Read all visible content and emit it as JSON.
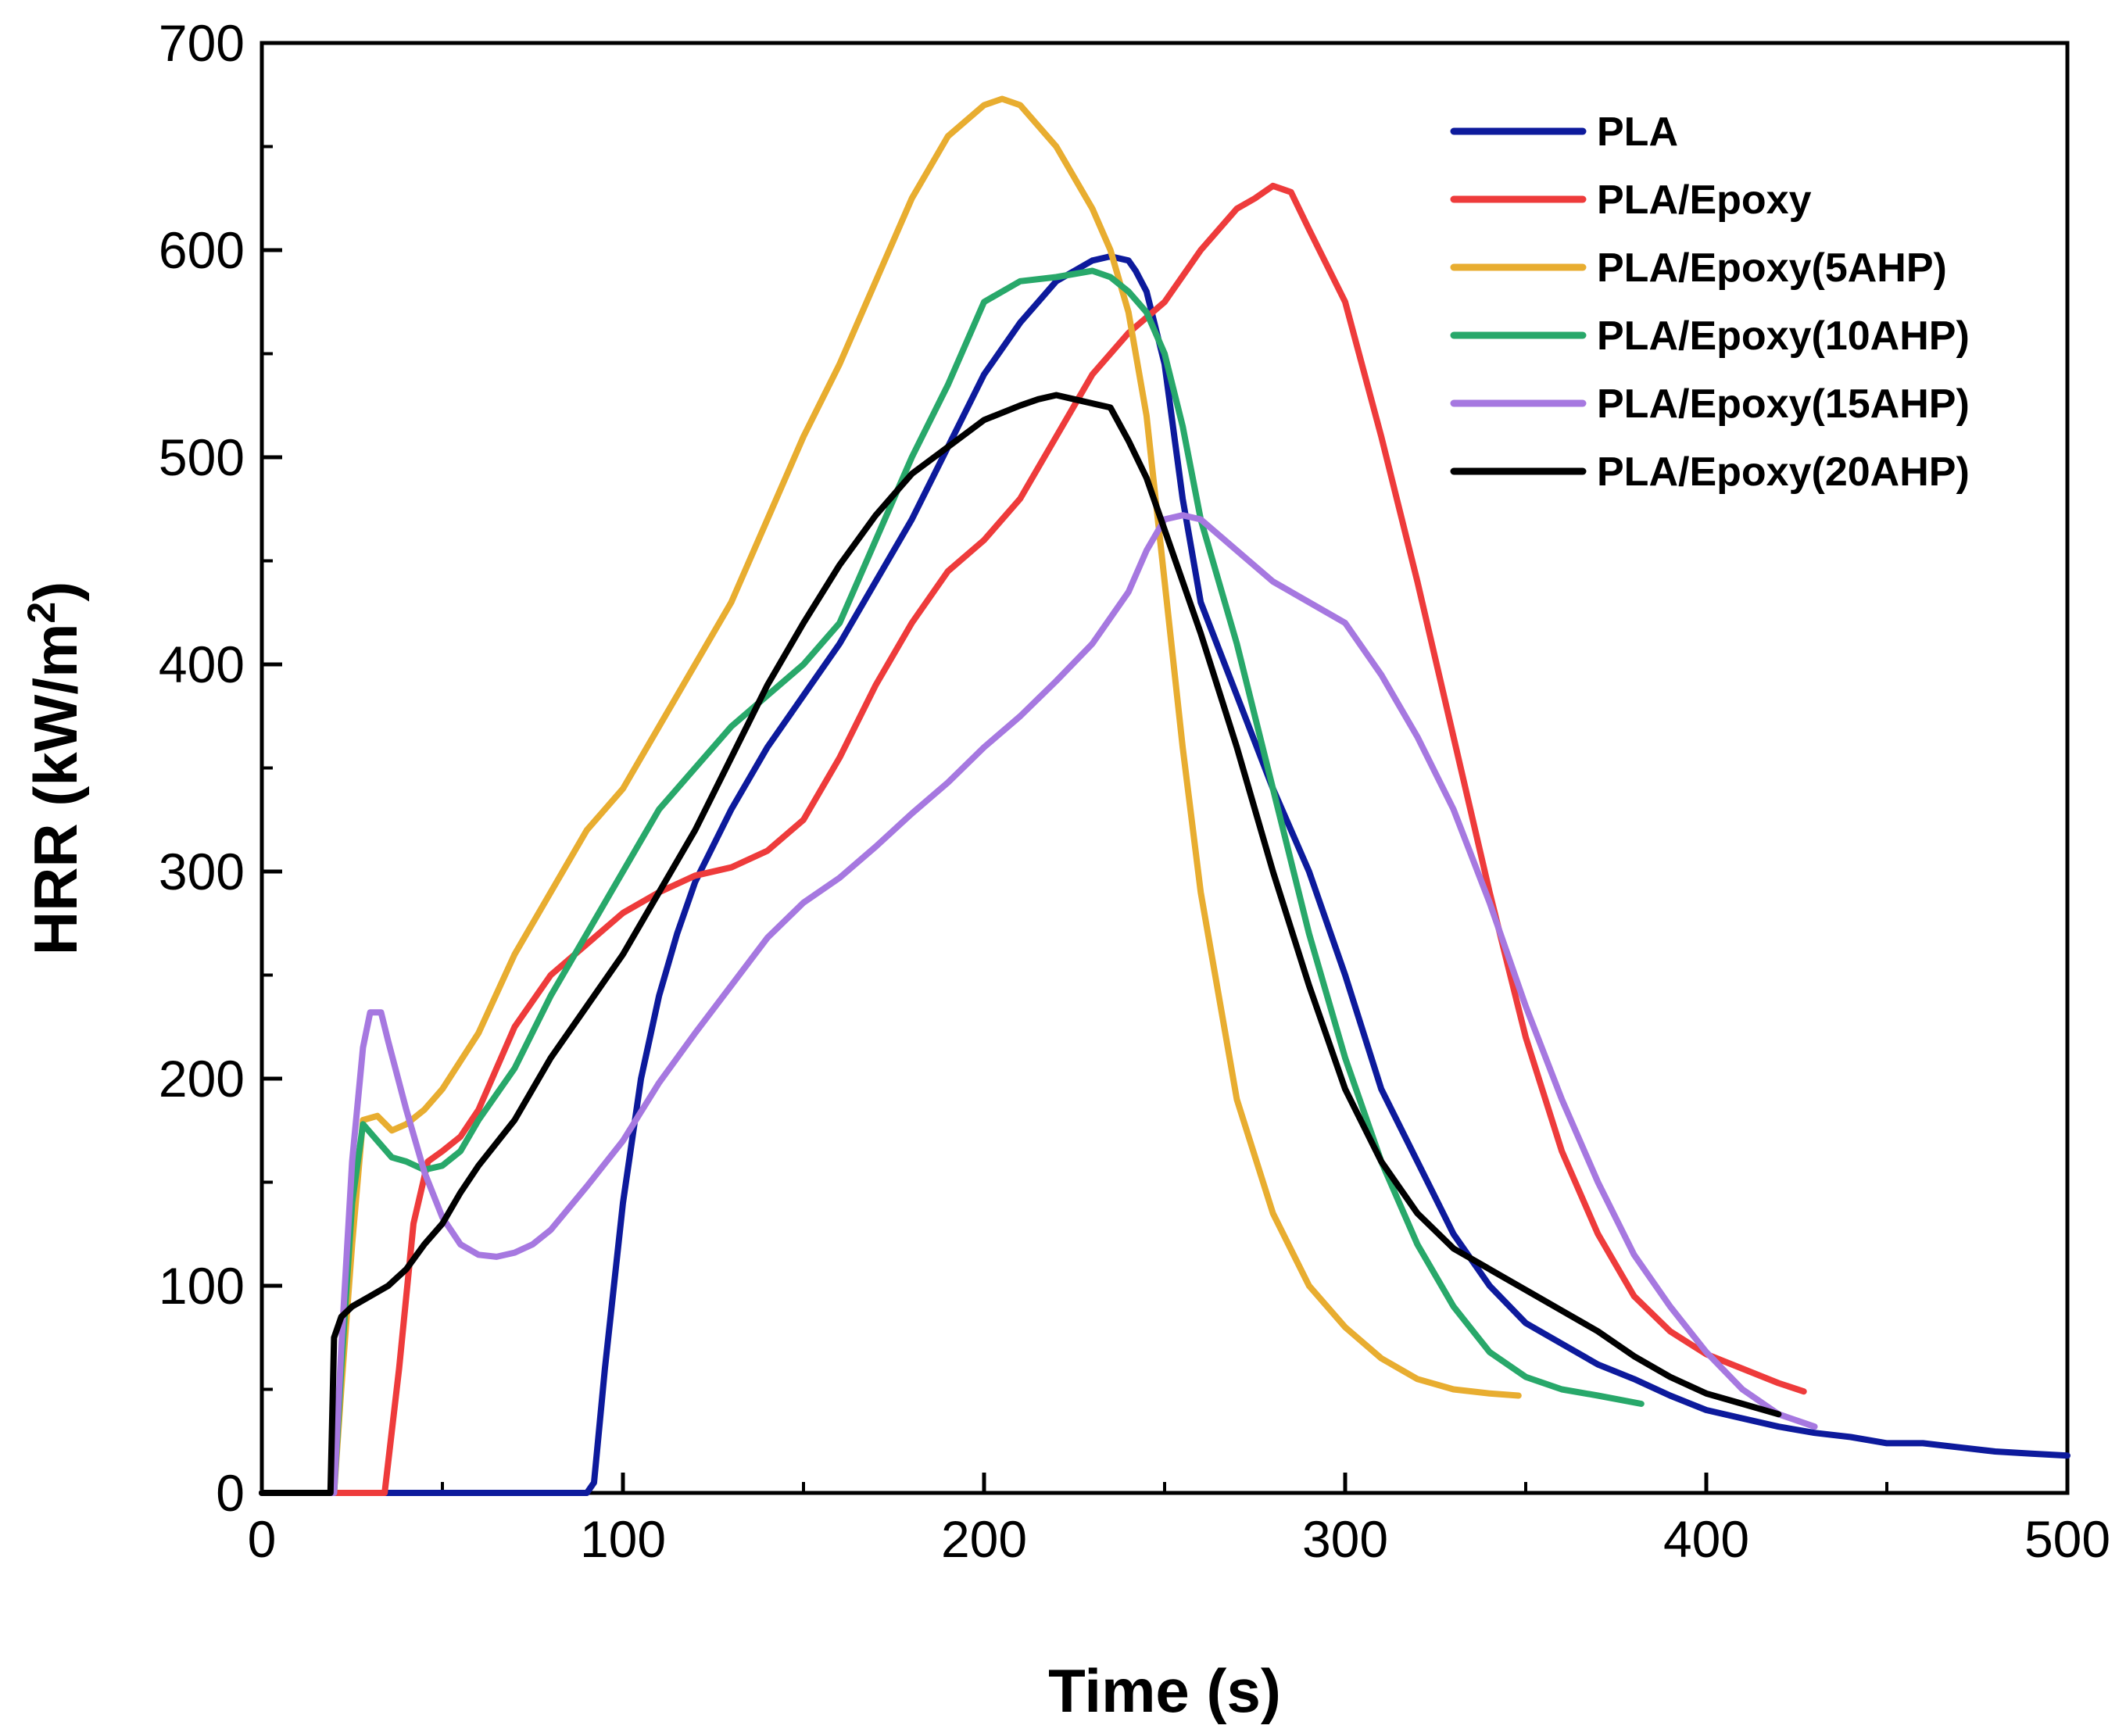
{
  "chart_data": {
    "type": "line",
    "title": "",
    "xlabel": "Time (s)",
    "ylabel": "HRR (kW/m",
    "ylabel_sup": "2",
    "ylabel_close": ")",
    "xlim": [
      0,
      500
    ],
    "ylim": [
      0,
      700
    ],
    "xticks": [
      "0",
      "100",
      "200",
      "300",
      "400",
      "500"
    ],
    "yticks": [
      "0",
      "100",
      "200",
      "300",
      "400",
      "500",
      "600",
      "700"
    ],
    "grid": false,
    "legend_position": "top-right",
    "series": [
      {
        "name": "PLA",
        "color": "#0d1a9c",
        "x": [
          0,
          20,
          40,
          60,
          80,
          90,
          92,
          95,
          100,
          105,
          110,
          115,
          120,
          130,
          140,
          150,
          160,
          170,
          180,
          190,
          200,
          210,
          220,
          230,
          235,
          240,
          242,
          245,
          250,
          255,
          260,
          270,
          280,
          290,
          300,
          310,
          320,
          330,
          340,
          350,
          360,
          370,
          380,
          390,
          400,
          410,
          420,
          430,
          440,
          450,
          460,
          470,
          480,
          490,
          500
        ],
        "y": [
          0,
          0,
          0,
          0,
          0,
          0,
          5,
          60,
          140,
          200,
          240,
          270,
          295,
          330,
          360,
          385,
          410,
          440,
          470,
          505,
          540,
          565,
          585,
          595,
          597,
          595,
          590,
          580,
          545,
          480,
          430,
          385,
          340,
          300,
          250,
          195,
          160,
          125,
          100,
          82,
          72,
          62,
          55,
          47,
          40,
          36,
          32,
          29,
          27,
          24,
          24,
          22,
          20,
          19,
          18
        ]
      },
      {
        "name": "PLA/Epoxy",
        "color": "#ee3b3b",
        "x": [
          0,
          20,
          34,
          38,
          42,
          46,
          50,
          55,
          60,
          70,
          80,
          90,
          100,
          110,
          120,
          130,
          140,
          150,
          160,
          170,
          180,
          190,
          200,
          210,
          220,
          230,
          240,
          250,
          260,
          270,
          275,
          280,
          285,
          290,
          300,
          310,
          320,
          330,
          340,
          350,
          360,
          370,
          380,
          390,
          400,
          410,
          420,
          427
        ],
        "y": [
          0,
          0,
          0,
          60,
          130,
          160,
          165,
          172,
          185,
          225,
          250,
          265,
          280,
          290,
          298,
          302,
          310,
          325,
          355,
          390,
          420,
          445,
          460,
          480,
          510,
          540,
          560,
          575,
          600,
          620,
          625,
          631,
          628,
          610,
          575,
          510,
          440,
          365,
          290,
          220,
          165,
          125,
          95,
          78,
          67,
          60,
          53,
          49
        ]
      },
      {
        "name": "PLA/Epoxy(5AHP)",
        "color": "#e8ad30",
        "x": [
          0,
          20,
          22,
          25,
          28,
          32,
          36,
          40,
          45,
          50,
          60,
          70,
          80,
          90,
          100,
          110,
          120,
          130,
          140,
          150,
          160,
          170,
          180,
          190,
          200,
          205,
          210,
          220,
          230,
          235,
          240,
          245,
          250,
          255,
          260,
          270,
          280,
          290,
          300,
          310,
          320,
          330,
          340,
          348
        ],
        "y": [
          0,
          0,
          50,
          120,
          180,
          182,
          175,
          178,
          185,
          195,
          222,
          260,
          290,
          320,
          340,
          370,
          400,
          430,
          470,
          510,
          545,
          585,
          625,
          655,
          670,
          673,
          670,
          650,
          620,
          600,
          570,
          520,
          440,
          360,
          290,
          190,
          135,
          100,
          80,
          65,
          55,
          50,
          48,
          47
        ]
      },
      {
        "name": "PLA/Epoxy(10AHP)",
        "color": "#28a86a",
        "x": [
          0,
          20,
          22,
          25,
          28,
          32,
          36,
          40,
          45,
          50,
          55,
          60,
          70,
          80,
          90,
          100,
          110,
          120,
          130,
          140,
          150,
          160,
          170,
          180,
          190,
          200,
          210,
          220,
          230,
          235,
          240,
          245,
          250,
          255,
          260,
          270,
          280,
          290,
          300,
          310,
          320,
          330,
          340,
          350,
          360,
          370,
          382
        ],
        "y": [
          0,
          0,
          60,
          140,
          178,
          170,
          162,
          160,
          156,
          158,
          165,
          180,
          205,
          240,
          270,
          300,
          330,
          350,
          370,
          385,
          400,
          420,
          460,
          500,
          535,
          575,
          585,
          587,
          590,
          587,
          580,
          570,
          550,
          515,
          470,
          410,
          340,
          270,
          210,
          160,
          120,
          90,
          68,
          56,
          50,
          47,
          43
        ]
      },
      {
        "name": "PLA/Epoxy(15AHP)",
        "color": "#a678e0",
        "x": [
          0,
          20,
          22,
          25,
          28,
          30,
          33,
          35,
          40,
          45,
          50,
          55,
          60,
          65,
          70,
          75,
          80,
          90,
          100,
          110,
          120,
          130,
          140,
          150,
          160,
          170,
          180,
          190,
          200,
          210,
          220,
          230,
          240,
          245,
          250,
          255,
          260,
          270,
          280,
          290,
          300,
          310,
          320,
          330,
          340,
          350,
          360,
          370,
          380,
          390,
          400,
          410,
          420,
          430
        ],
        "y": [
          0,
          0,
          70,
          160,
          215,
          232,
          232,
          218,
          185,
          155,
          133,
          120,
          115,
          114,
          116,
          120,
          127,
          148,
          170,
          198,
          222,
          245,
          268,
          285,
          297,
          312,
          328,
          343,
          360,
          375,
          392,
          410,
          435,
          455,
          470,
          472,
          470,
          455,
          440,
          430,
          420,
          395,
          365,
          330,
          285,
          235,
          190,
          150,
          115,
          90,
          68,
          50,
          38,
          32
        ]
      },
      {
        "name": "PLA/Epoxy(20AHP)",
        "color": "#000000",
        "x": [
          0,
          19,
          20,
          22,
          25,
          30,
          35,
          40,
          45,
          50,
          55,
          60,
          70,
          80,
          90,
          100,
          110,
          120,
          130,
          140,
          150,
          160,
          170,
          180,
          190,
          200,
          210,
          215,
          220,
          225,
          230,
          235,
          240,
          245,
          250,
          260,
          270,
          280,
          290,
          300,
          310,
          320,
          330,
          340,
          350,
          360,
          370,
          380,
          390,
          400,
          410,
          420
        ],
        "y": [
          0,
          0,
          75,
          85,
          90,
          95,
          100,
          108,
          120,
          130,
          145,
          158,
          180,
          210,
          235,
          260,
          290,
          320,
          355,
          390,
          420,
          448,
          472,
          492,
          505,
          518,
          525,
          528,
          530,
          528,
          526,
          524,
          508,
          490,
          465,
          415,
          360,
          300,
          245,
          195,
          160,
          135,
          118,
          108,
          98,
          88,
          78,
          66,
          56,
          48,
          43,
          38
        ]
      }
    ]
  }
}
